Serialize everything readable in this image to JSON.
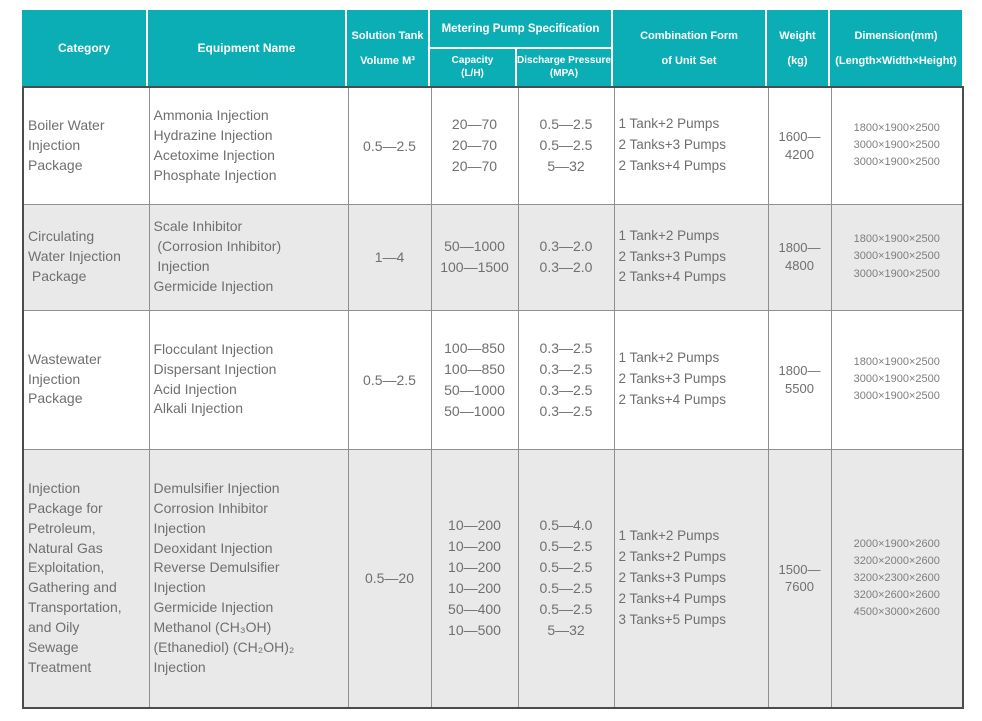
{
  "colors": {
    "header_bg": "#0caeb5",
    "row_alt_bg": "#e9e9e9",
    "border_outer": "#4c4c4c",
    "border_inner": "#8f8f8f",
    "body_text": "#6f6f6f",
    "header_text": "#ffffff"
  },
  "header": {
    "category": "Category",
    "equipment": "Equipment Name",
    "solution_tank": [
      "Solution Tank",
      "Volume M³"
    ],
    "metering_group": "Metering Pump Specification",
    "capacity": [
      "Capacity",
      "(L/H)"
    ],
    "discharge": [
      "Discharge Pressure",
      "(MPA)"
    ],
    "combination": [
      "Combination Form",
      "of Unit Set"
    ],
    "weight": [
      "Weight",
      "(kg)"
    ],
    "dimension": [
      "Dimension(mm)",
      "(Length×Width×Height)"
    ]
  },
  "rows": [
    {
      "category": [
        "Boiler Water",
        "Injection",
        "Package"
      ],
      "equipment": [
        "Ammonia Injection",
        "Hydrazine Injection",
        "Acetoxime Injection",
        "Phosphate Injection"
      ],
      "tank_volume": "0.5—2.5",
      "capacity": [
        "20—70",
        "20—70",
        "20—70"
      ],
      "discharge_pressure": [
        "0.5—2.5",
        "0.5—2.5",
        "5—32"
      ],
      "combination": [
        "1 Tank+2 Pumps",
        "2 Tanks+3 Pumps",
        "2 Tanks+4 Pumps"
      ],
      "weight": [
        "1600—",
        "4200"
      ],
      "dimension": [
        "1800×1900×2500",
        "3000×1900×2500",
        "3000×1900×2500"
      ]
    },
    {
      "category": [
        "Circulating",
        "Water Injection",
        " Package"
      ],
      "equipment": [
        "Scale Inhibitor",
        " (Corrosion Inhibitor)",
        " Injection",
        "Germicide Injection"
      ],
      "tank_volume": "1—4",
      "capacity": [
        "50—1000",
        "100—1500"
      ],
      "discharge_pressure": [
        "0.3—2.0",
        "0.3—2.0"
      ],
      "combination": [
        "1 Tank+2 Pumps",
        "2 Tanks+3 Pumps",
        "2 Tanks+4 Pumps"
      ],
      "weight": [
        "1800—",
        "4800"
      ],
      "dimension": [
        "1800×1900×2500",
        "3000×1900×2500",
        "3000×1900×2500"
      ]
    },
    {
      "category": [
        "Wastewater",
        "Injection",
        "Package"
      ],
      "equipment": [
        "Flocculant Injection",
        "Dispersant Injection",
        "Acid Injection",
        "Alkali Injection"
      ],
      "tank_volume": "0.5—2.5",
      "capacity": [
        "100—850",
        "100—850",
        "50—1000",
        "50—1000"
      ],
      "discharge_pressure": [
        "0.3—2.5",
        "0.3—2.5",
        "0.3—2.5",
        "0.3—2.5"
      ],
      "combination": [
        "1 Tank+2 Pumps",
        "2 Tanks+3 Pumps",
        "2 Tanks+4 Pumps"
      ],
      "weight": [
        "1800—",
        "5500"
      ],
      "dimension": [
        "1800×1900×2500",
        "3000×1900×2500",
        "3000×1900×2500"
      ]
    },
    {
      "category": [
        "Injection",
        "Package for",
        "Petroleum,",
        "Natural Gas",
        "Exploitation,",
        "Gathering and",
        "Transportation,",
        "and Oily",
        "Sewage",
        "Treatment"
      ],
      "equipment": [
        "Demulsifier Injection",
        "Corrosion Inhibitor",
        "Injection",
        "Deoxidant Injection",
        "Reverse Demulsifier",
        "Injection",
        "Germicide Injection",
        "Methanol (CH₃OH)",
        "(Ethanediol) (CH₂OH)₂",
        "Injection"
      ],
      "tank_volume": "0.5—20",
      "capacity": [
        "10—200",
        "10—200",
        "10—200",
        "10—200",
        "50—400",
        "10—500"
      ],
      "discharge_pressure": [
        "0.5—4.0",
        "0.5—2.5",
        "0.5—2.5",
        "0.5—2.5",
        "0.5—2.5",
        "5—32"
      ],
      "combination": [
        "1 Tank+2 Pumps",
        "2 Tanks+2 Pumps",
        "2 Tanks+3 Pumps",
        "2 Tanks+4 Pumps",
        "3 Tanks+5 Pumps"
      ],
      "weight": [
        "1500—",
        "7600"
      ],
      "dimension": [
        "2000×1900×2600",
        "3200×2000×2600",
        "3200×2300×2600",
        "3200×2600×2600",
        "4500×3000×2600"
      ]
    }
  ]
}
